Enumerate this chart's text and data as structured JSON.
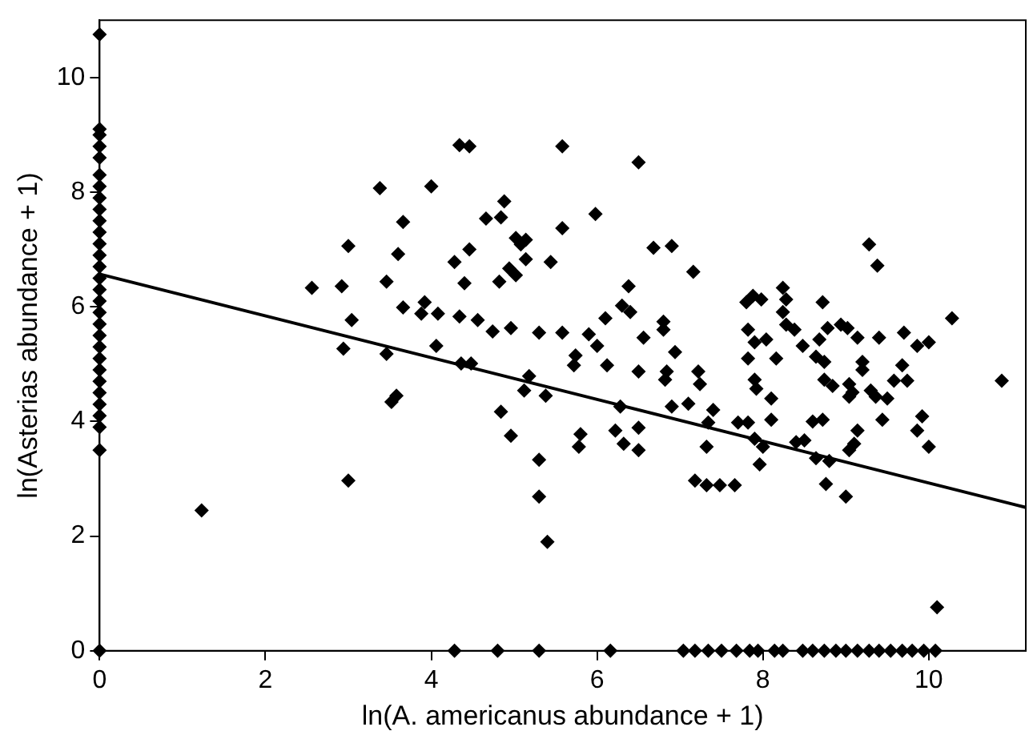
{
  "chart_data": {
    "type": "scatter",
    "xlabel": "ln(A. americanus abundance + 1)",
    "ylabel": "ln(Asterias abundance + 1)",
    "xlim": [
      0,
      11.17
    ],
    "ylim": [
      0,
      11
    ],
    "xticks": [
      0,
      2,
      4,
      6,
      8,
      10
    ],
    "yticks": [
      0,
      2,
      4,
      6,
      8,
      10
    ],
    "grid": false,
    "legend": false,
    "marker": "diamond",
    "series": [
      {
        "color": "#000000",
        "x": [
          0,
          0,
          0,
          0,
          0,
          0,
          0,
          0,
          0,
          0,
          0,
          0,
          0,
          0,
          0,
          0,
          0,
          0,
          0,
          0,
          0,
          0,
          0,
          0,
          0,
          0,
          0,
          0,
          0,
          0,
          1.23,
          2.56,
          2.92,
          3.0,
          3.04,
          2.94,
          3.0,
          3.38,
          3.46,
          3.46,
          3.52,
          4.34,
          4.46,
          5.58,
          6.5,
          4.0,
          3.66,
          4.66,
          4.84,
          4.88,
          5.98,
          3.6,
          4.46,
          4.28,
          5.58,
          5.02,
          5.14,
          5.08,
          5.14,
          5.44,
          4.94,
          5.02,
          4.82,
          4.4,
          6.68,
          6.38,
          3.66,
          3.92,
          3.88,
          4.08,
          4.34,
          4.56,
          4.74,
          4.96,
          5.3,
          5.58,
          5.9,
          6.1,
          6.3,
          6.4,
          6.0,
          5.74,
          5.72,
          6.12,
          6.5,
          6.56,
          4.06,
          4.36,
          4.48,
          5.18,
          5.12,
          5.38,
          6.28,
          3.58,
          4.84,
          4.96,
          6.22,
          6.32,
          6.5,
          6.5,
          5.8,
          5.78,
          5.3,
          5.3,
          5.4,
          4.28,
          4.8,
          5.3,
          6.16,
          7.04,
          7.18,
          7.34,
          7.5,
          7.68,
          7.84,
          7.94,
          8.14,
          8.24,
          8.48,
          8.6,
          8.74,
          8.88,
          9.0,
          9.14,
          9.28,
          9.4,
          9.54,
          9.68,
          9.8,
          9.94,
          10.08,
          6.9,
          7.16,
          9.28,
          9.38,
          6.8,
          6.8,
          6.94,
          6.84,
          6.82,
          7.22,
          7.24,
          7.1,
          6.9,
          7.4,
          7.34,
          7.32,
          7.7,
          7.82,
          7.9,
          8.0,
          7.96,
          7.18,
          7.32,
          7.48,
          7.66,
          7.8,
          7.88,
          7.98,
          7.82,
          7.9,
          8.04,
          7.82,
          8.16,
          7.9,
          7.92,
          8.1,
          8.1,
          8.24,
          8.28,
          8.24,
          8.28,
          8.38,
          8.48,
          8.72,
          8.68,
          8.78,
          8.94,
          9.02,
          9.14,
          9.4,
          9.7,
          9.86,
          10.0,
          10.28,
          8.64,
          8.74,
          8.74,
          8.84,
          9.04,
          9.08,
          9.04,
          9.2,
          9.2,
          9.3,
          9.36,
          9.5,
          9.58,
          9.68,
          9.74,
          9.44,
          9.92,
          9.86,
          10.0,
          10.88,
          10.1,
          8.4,
          8.5,
          8.6,
          8.72,
          8.64,
          8.8,
          8.76,
          9.0,
          9.14,
          9.1,
          9.04
        ],
        "values": [
          10.75,
          9.1,
          9.0,
          8.8,
          8.6,
          8.3,
          8.1,
          7.9,
          7.7,
          7.5,
          7.3,
          7.1,
          6.9,
          6.7,
          6.5,
          6.3,
          6.1,
          5.9,
          5.7,
          5.5,
          5.3,
          5.1,
          4.9,
          4.7,
          4.5,
          4.3,
          4.1,
          3.9,
          3.5,
          0,
          2.45,
          6.33,
          6.36,
          7.06,
          5.77,
          5.27,
          2.97,
          8.07,
          6.44,
          5.18,
          4.34,
          8.82,
          8.8,
          8.8,
          8.52,
          8.1,
          7.48,
          7.54,
          7.56,
          7.84,
          7.62,
          6.92,
          7.0,
          6.78,
          7.37,
          7.2,
          7.17,
          7.09,
          6.83,
          6.78,
          6.67,
          6.55,
          6.44,
          6.41,
          7.03,
          6.36,
          5.99,
          6.08,
          5.88,
          5.88,
          5.83,
          5.77,
          5.57,
          5.63,
          5.55,
          5.55,
          5.52,
          5.8,
          6.02,
          5.91,
          5.32,
          5.15,
          4.98,
          4.98,
          4.87,
          5.46,
          5.32,
          5.01,
          5.01,
          4.79,
          4.54,
          4.45,
          4.26,
          4.45,
          4.17,
          3.75,
          3.84,
          3.61,
          3.89,
          3.5,
          3.78,
          3.56,
          3.33,
          2.69,
          1.9,
          0,
          0,
          0,
          0,
          0,
          0,
          0,
          0,
          0,
          0,
          0,
          0,
          0,
          0,
          0,
          0,
          0,
          0,
          0,
          0,
          0,
          0,
          0,
          0,
          0,
          0,
          7.06,
          6.61,
          7.09,
          6.72,
          5.74,
          5.6,
          5.21,
          4.87,
          4.73,
          4.87,
          4.65,
          4.31,
          4.26,
          4.2,
          3.98,
          3.56,
          3.98,
          3.98,
          3.7,
          3.56,
          3.25,
          2.97,
          2.89,
          2.89,
          2.89,
          6.08,
          6.19,
          6.13,
          5.6,
          5.38,
          5.43,
          5.1,
          5.1,
          4.73,
          4.57,
          4.4,
          4.03,
          6.33,
          6.13,
          5.91,
          5.69,
          5.6,
          5.32,
          6.08,
          5.43,
          5.63,
          5.69,
          5.63,
          5.46,
          5.46,
          5.55,
          5.32,
          5.38,
          5.8,
          5.13,
          5.04,
          4.73,
          4.62,
          4.65,
          4.51,
          4.43,
          5.04,
          4.9,
          4.54,
          4.43,
          4.4,
          4.71,
          4.98,
          4.71,
          4.03,
          4.09,
          3.84,
          3.56,
          4.71,
          0.76,
          3.64,
          3.67,
          4.0,
          4.03,
          3.36,
          3.31,
          2.91,
          2.69,
          3.84,
          3.61,
          3.5
        ]
      },
      {
        "type": "line",
        "color": "#000000",
        "marker": "none",
        "line_style": "solid",
        "x": [
          0,
          11.17
        ],
        "values": [
          6.57,
          2.5
        ]
      }
    ]
  }
}
